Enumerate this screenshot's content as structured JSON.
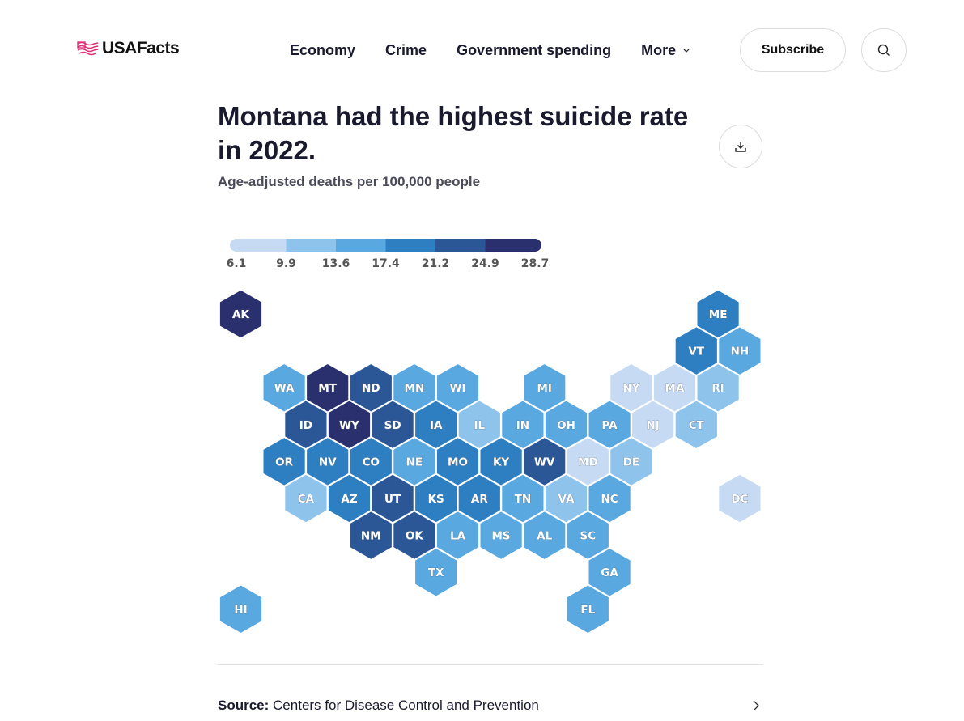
{
  "header": {
    "logo_text": "USAFacts",
    "nav": [
      "Economy",
      "Crime",
      "Government spending"
    ],
    "more_label": "More",
    "subscribe_label": "Subscribe"
  },
  "title": "Montana had the highest suicide rate in 2022.",
  "subtitle": "Age-adjusted deaths per 100,000 people",
  "legend": {
    "breaks": [
      "6.1",
      "9.9",
      "13.6",
      "17.4",
      "21.2",
      "24.9",
      "28.7"
    ],
    "colors": [
      "#c6dbf3",
      "#8ec3ec",
      "#5aa8e0",
      "#2e7fc2",
      "#2c5797",
      "#2a2f6e"
    ]
  },
  "states": [
    {
      "abbr": "AK",
      "row": 0,
      "col": 0,
      "bin": 5
    },
    {
      "abbr": "ME",
      "row": 0,
      "col": 11,
      "bin": 3
    },
    {
      "abbr": "VT",
      "row": 1,
      "col": 10,
      "bin": 3
    },
    {
      "abbr": "NH",
      "row": 1,
      "col": 11,
      "bin": 2
    },
    {
      "abbr": "WA",
      "row": 2,
      "col": 1,
      "bin": 2
    },
    {
      "abbr": "MT",
      "row": 2,
      "col": 2,
      "bin": 5
    },
    {
      "abbr": "ND",
      "row": 2,
      "col": 3,
      "bin": 4
    },
    {
      "abbr": "MN",
      "row": 2,
      "col": 4,
      "bin": 2
    },
    {
      "abbr": "WI",
      "row": 2,
      "col": 5,
      "bin": 2
    },
    {
      "abbr": "MI",
      "row": 2,
      "col": 7,
      "bin": 2
    },
    {
      "abbr": "NY",
      "row": 2,
      "col": 9,
      "bin": 0
    },
    {
      "abbr": "MA",
      "row": 2,
      "col": 10,
      "bin": 0
    },
    {
      "abbr": "RI",
      "row": 2,
      "col": 11,
      "bin": 1
    },
    {
      "abbr": "ID",
      "row": 3,
      "col": 1,
      "bin": 4
    },
    {
      "abbr": "WY",
      "row": 3,
      "col": 2,
      "bin": 5
    },
    {
      "abbr": "SD",
      "row": 3,
      "col": 3,
      "bin": 4
    },
    {
      "abbr": "IA",
      "row": 3,
      "col": 4,
      "bin": 3
    },
    {
      "abbr": "IL",
      "row": 3,
      "col": 5,
      "bin": 1
    },
    {
      "abbr": "IN",
      "row": 3,
      "col": 6,
      "bin": 2
    },
    {
      "abbr": "OH",
      "row": 3,
      "col": 7,
      "bin": 2
    },
    {
      "abbr": "PA",
      "row": 3,
      "col": 8,
      "bin": 2
    },
    {
      "abbr": "NJ",
      "row": 3,
      "col": 9,
      "bin": 0
    },
    {
      "abbr": "CT",
      "row": 3,
      "col": 10,
      "bin": 1
    },
    {
      "abbr": "OR",
      "row": 4,
      "col": 1,
      "bin": 3
    },
    {
      "abbr": "NV",
      "row": 4,
      "col": 2,
      "bin": 3
    },
    {
      "abbr": "CO",
      "row": 4,
      "col": 3,
      "bin": 3
    },
    {
      "abbr": "NE",
      "row": 4,
      "col": 4,
      "bin": 2
    },
    {
      "abbr": "MO",
      "row": 4,
      "col": 5,
      "bin": 3
    },
    {
      "abbr": "KY",
      "row": 4,
      "col": 6,
      "bin": 3
    },
    {
      "abbr": "WV",
      "row": 4,
      "col": 7,
      "bin": 4
    },
    {
      "abbr": "MD",
      "row": 4,
      "col": 8,
      "bin": 0
    },
    {
      "abbr": "DE",
      "row": 4,
      "col": 9,
      "bin": 1
    },
    {
      "abbr": "CA",
      "row": 5,
      "col": 1,
      "bin": 1
    },
    {
      "abbr": "AZ",
      "row": 5,
      "col": 2,
      "bin": 3
    },
    {
      "abbr": "UT",
      "row": 5,
      "col": 3,
      "bin": 4
    },
    {
      "abbr": "KS",
      "row": 5,
      "col": 4,
      "bin": 3
    },
    {
      "abbr": "AR",
      "row": 5,
      "col": 5,
      "bin": 3
    },
    {
      "abbr": "TN",
      "row": 5,
      "col": 6,
      "bin": 2
    },
    {
      "abbr": "VA",
      "row": 5,
      "col": 7,
      "bin": 1
    },
    {
      "abbr": "NC",
      "row": 5,
      "col": 8,
      "bin": 2
    },
    {
      "abbr": "DC",
      "row": 5,
      "col": 11,
      "bin": 0
    },
    {
      "abbr": "NM",
      "row": 6,
      "col": 3,
      "bin": 4
    },
    {
      "abbr": "OK",
      "row": 6,
      "col": 4,
      "bin": 4
    },
    {
      "abbr": "LA",
      "row": 6,
      "col": 5,
      "bin": 2
    },
    {
      "abbr": "MS",
      "row": 6,
      "col": 6,
      "bin": 2
    },
    {
      "abbr": "AL",
      "row": 6,
      "col": 7,
      "bin": 2
    },
    {
      "abbr": "SC",
      "row": 6,
      "col": 8,
      "bin": 2
    },
    {
      "abbr": "TX",
      "row": 7,
      "col": 4,
      "bin": 2
    },
    {
      "abbr": "GA",
      "row": 7,
      "col": 8,
      "bin": 2
    },
    {
      "abbr": "HI",
      "row": 8,
      "col": 0,
      "bin": 2
    },
    {
      "abbr": "FL",
      "row": 8,
      "col": 8,
      "bin": 2
    }
  ],
  "source": {
    "label": "Source:",
    "text": "Centers for Disease Control and Prevention"
  }
}
